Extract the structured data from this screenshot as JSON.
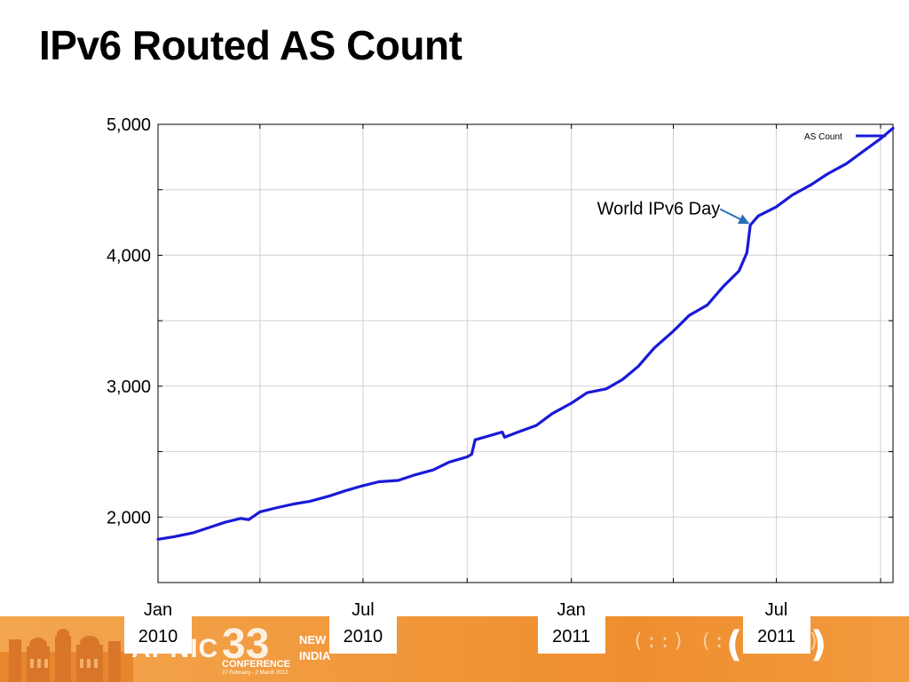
{
  "slide": {
    "title": "IPv6 Routed AS Count"
  },
  "footer": {
    "brand": "APNIC",
    "conference_number": "33",
    "conference_word": "CONFERENCE",
    "conference_dates": "27 February - 2 March 2012",
    "city_line1": "NEW DELHI",
    "city_line2": "INDIA",
    "colors": {
      "banner": "#f19a3e"
    }
  },
  "chart_data": {
    "type": "line",
    "title": "",
    "xlabel": "",
    "ylabel": "",
    "x_range": [
      "2010-01-01",
      "2011-10-12"
    ],
    "ylim": [
      1500,
      5000
    ],
    "y_ticks": [
      2000,
      3000,
      4000,
      5000
    ],
    "y_tick_labels": [
      "2,000",
      "3,000",
      "4,000",
      "5,000"
    ],
    "x_tick_dates": [
      "2010-01-01",
      "2010-04-01",
      "2010-07-01",
      "2010-10-01",
      "2011-01-01",
      "2011-04-01",
      "2011-07-01",
      "2011-10-01"
    ],
    "x_labels": [
      {
        "date": "2010-01-01",
        "line1": "Jan",
        "line2": "2010"
      },
      {
        "date": "2010-07-01",
        "line1": "Jul",
        "line2": "2010"
      },
      {
        "date": "2011-01-01",
        "line1": "Jan",
        "line2": "2011"
      },
      {
        "date": "2011-07-01",
        "line1": "Jul",
        "line2": "2011"
      }
    ],
    "grid": true,
    "legend": {
      "position": "top-right",
      "entries": [
        "AS Count"
      ]
    },
    "annotations": [
      {
        "text": "World IPv6 Day",
        "date": "2011-06-08",
        "y": 4230
      }
    ],
    "series": [
      {
        "name": "AS Count",
        "color": "#1a1ad6",
        "points": [
          [
            "2010-01-01",
            1830
          ],
          [
            "2010-01-15",
            1850
          ],
          [
            "2010-02-01",
            1880
          ],
          [
            "2010-02-15",
            1920
          ],
          [
            "2010-03-01",
            1960
          ],
          [
            "2010-03-15",
            1990
          ],
          [
            "2010-03-22",
            1980
          ],
          [
            "2010-04-01",
            2040
          ],
          [
            "2010-04-15",
            2070
          ],
          [
            "2010-05-01",
            2100
          ],
          [
            "2010-05-15",
            2120
          ],
          [
            "2010-06-01",
            2160
          ],
          [
            "2010-06-15",
            2200
          ],
          [
            "2010-07-01",
            2240
          ],
          [
            "2010-07-15",
            2270
          ],
          [
            "2010-08-01",
            2280
          ],
          [
            "2010-08-15",
            2320
          ],
          [
            "2010-09-01",
            2360
          ],
          [
            "2010-09-15",
            2420
          ],
          [
            "2010-10-01",
            2460
          ],
          [
            "2010-10-05",
            2480
          ],
          [
            "2010-10-08",
            2590
          ],
          [
            "2010-10-20",
            2620
          ],
          [
            "2010-11-01",
            2650
          ],
          [
            "2010-11-03",
            2610
          ],
          [
            "2010-11-15",
            2650
          ],
          [
            "2010-12-01",
            2700
          ],
          [
            "2010-12-15",
            2790
          ],
          [
            "2011-01-01",
            2870
          ],
          [
            "2011-01-15",
            2950
          ],
          [
            "2011-02-01",
            2980
          ],
          [
            "2011-02-15",
            3050
          ],
          [
            "2011-03-01",
            3150
          ],
          [
            "2011-03-15",
            3290
          ],
          [
            "2011-04-01",
            3420
          ],
          [
            "2011-04-15",
            3540
          ],
          [
            "2011-05-01",
            3620
          ],
          [
            "2011-05-15",
            3760
          ],
          [
            "2011-05-29",
            3880
          ],
          [
            "2011-06-05",
            4020
          ],
          [
            "2011-06-08",
            4230
          ],
          [
            "2011-06-15",
            4300
          ],
          [
            "2011-07-01",
            4370
          ],
          [
            "2011-07-15",
            4460
          ],
          [
            "2011-08-01",
            4540
          ],
          [
            "2011-08-15",
            4620
          ],
          [
            "2011-09-01",
            4700
          ],
          [
            "2011-09-15",
            4790
          ],
          [
            "2011-10-01",
            4890
          ],
          [
            "2011-10-12",
            4970
          ]
        ]
      }
    ]
  }
}
